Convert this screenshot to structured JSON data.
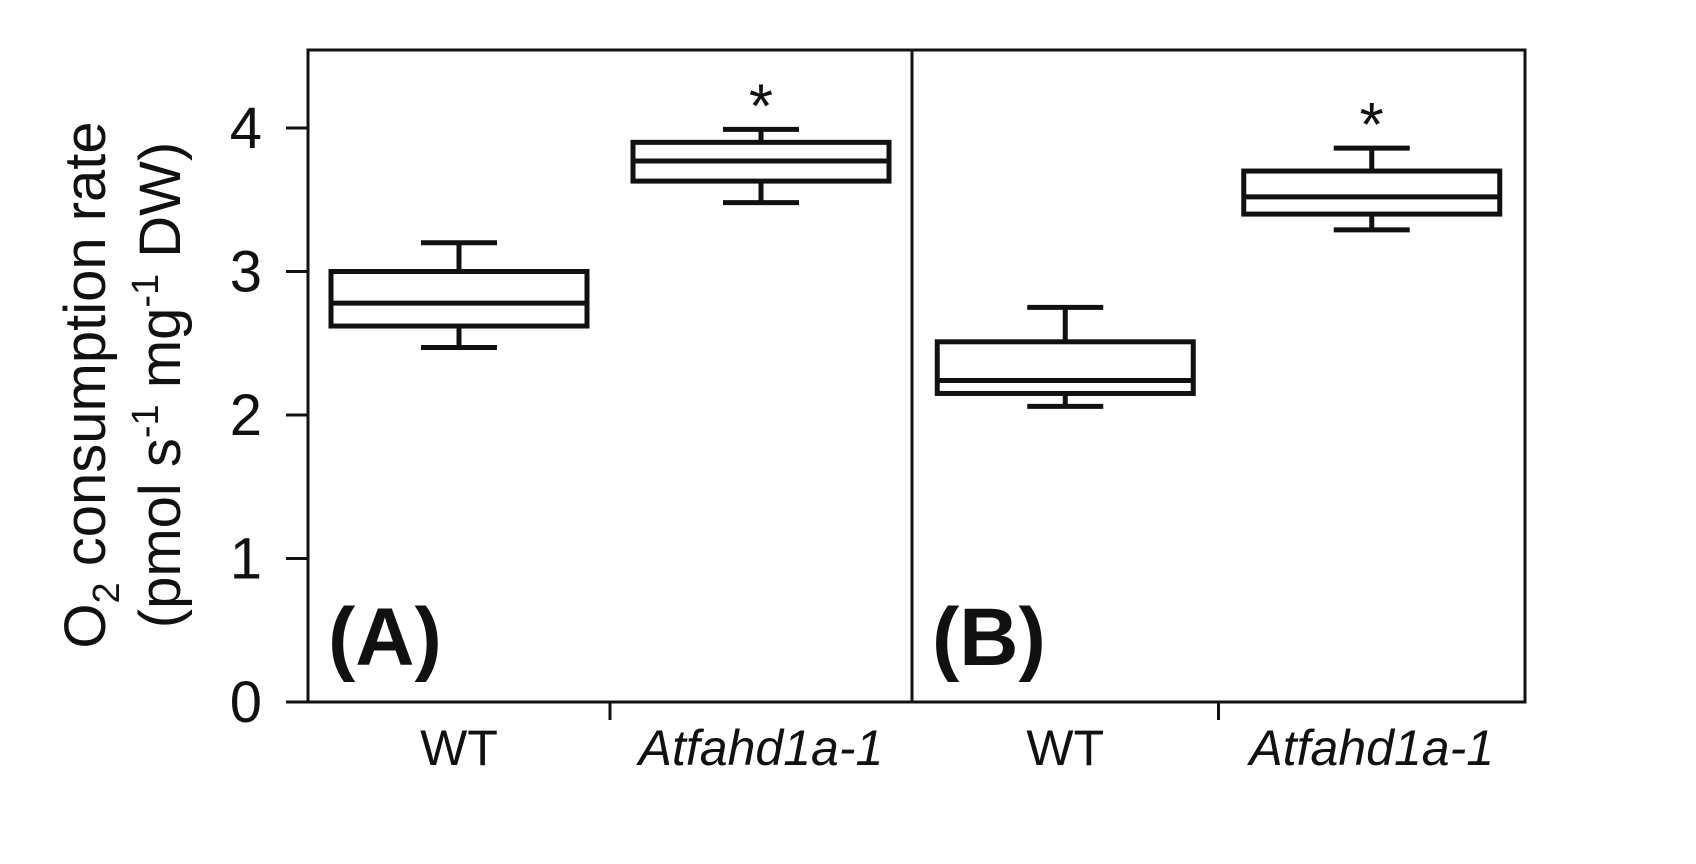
{
  "chart_data": {
    "type": "box",
    "ylabel_line1_main": "O",
    "ylabel_line1_sub": "2",
    "ylabel_line1_rest": " consumption rate",
    "ylabel_line2_a": "(pmol s",
    "ylabel_line2_sup1": "-1",
    "ylabel_line2_b": " mg",
    "ylabel_line2_sup2": "-1",
    "ylabel_line2_c": " DW)",
    "ylim": [
      0,
      4.5
    ],
    "yticks": [
      "0",
      "1",
      "2",
      "3",
      "4"
    ],
    "significance_marker": "*",
    "panels": [
      {
        "label": "(A)",
        "categories": [
          "WT",
          "Atfahd1a-1"
        ],
        "boxes": [
          {
            "category": "WT",
            "whisker_low": 2.47,
            "q1": 2.62,
            "median": 2.78,
            "q3": 3.0,
            "whisker_high": 3.2,
            "significant": false
          },
          {
            "category": "Atfahd1a-1",
            "whisker_low": 3.48,
            "q1": 3.63,
            "median": 3.77,
            "q3": 3.9,
            "whisker_high": 3.99,
            "significant": true
          }
        ]
      },
      {
        "label": "(B)",
        "categories": [
          "WT",
          "Atfahd1a-1"
        ],
        "boxes": [
          {
            "category": "WT",
            "whisker_low": 2.06,
            "q1": 2.15,
            "median": 2.24,
            "q3": 2.51,
            "whisker_high": 2.75,
            "significant": false
          },
          {
            "category": "Atfahd1a-1",
            "whisker_low": 3.29,
            "q1": 3.4,
            "median": 3.52,
            "q3": 3.7,
            "whisker_high": 3.86,
            "significant": true
          }
        ]
      }
    ]
  }
}
